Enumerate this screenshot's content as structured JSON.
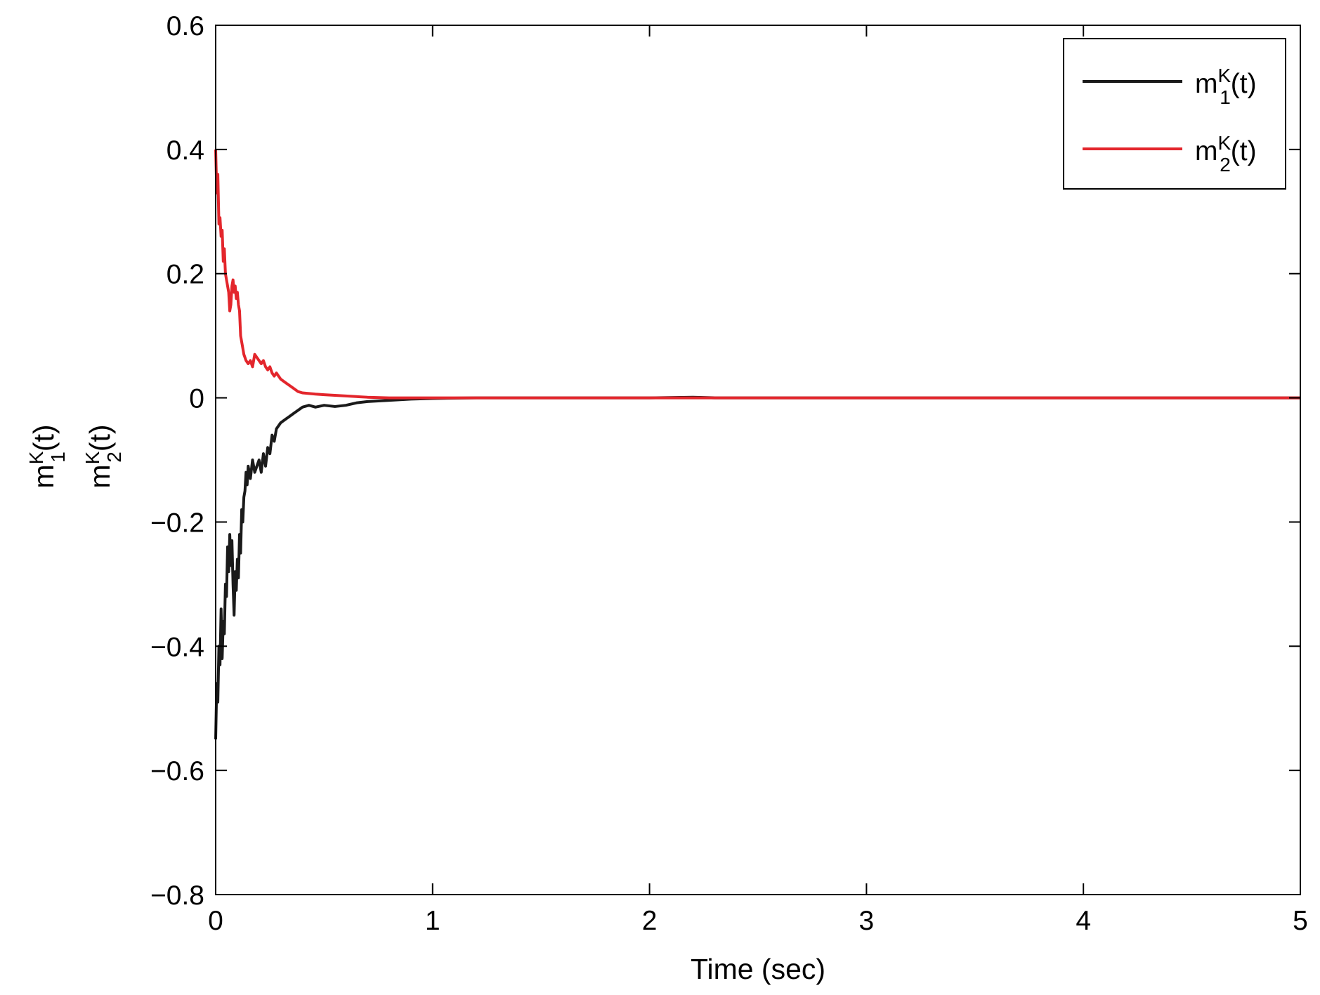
{
  "chart_data": {
    "type": "line",
    "title": "",
    "xlabel": "Time (sec)",
    "ylabel_lines": [
      {
        "base": "m",
        "sup": "K",
        "sub": "1",
        "tail": "(t)"
      },
      {
        "base": "m",
        "sup": "K",
        "sub": "2",
        "tail": "(t)"
      }
    ],
    "xlim": [
      0,
      5
    ],
    "ylim": [
      -0.8,
      0.6
    ],
    "xticks": [
      0,
      1,
      2,
      3,
      4,
      5
    ],
    "xtick_labels": [
      "0",
      "1",
      "2",
      "3",
      "4",
      "5"
    ],
    "yticks": [
      -0.8,
      -0.6,
      -0.4,
      -0.2,
      0,
      0.2,
      0.4,
      0.6
    ],
    "ytick_labels": [
      "−0.8",
      "−0.6",
      "−0.4",
      "−0.2",
      "0",
      "0.2",
      "0.4",
      "0.6"
    ],
    "grid": false,
    "legend_position": "top-right",
    "series": [
      {
        "name": {
          "base": "m",
          "sup": "K",
          "sub": "1",
          "tail": "(t)"
        },
        "color": "#1a1a1a",
        "x": [
          0.0,
          0.005,
          0.01,
          0.015,
          0.02,
          0.025,
          0.03,
          0.035,
          0.04,
          0.045,
          0.05,
          0.055,
          0.06,
          0.065,
          0.07,
          0.075,
          0.08,
          0.085,
          0.09,
          0.095,
          0.1,
          0.105,
          0.11,
          0.115,
          0.12,
          0.125,
          0.13,
          0.135,
          0.14,
          0.145,
          0.15,
          0.16,
          0.17,
          0.18,
          0.19,
          0.2,
          0.21,
          0.22,
          0.23,
          0.24,
          0.25,
          0.26,
          0.27,
          0.28,
          0.3,
          0.32,
          0.34,
          0.36,
          0.38,
          0.4,
          0.43,
          0.46,
          0.5,
          0.55,
          0.6,
          0.65,
          0.7,
          0.8,
          0.9,
          1.0,
          1.2,
          1.5,
          2.0,
          2.2,
          2.3,
          3.0,
          4.0,
          5.0
        ],
        "y": [
          -0.55,
          -0.46,
          -0.49,
          -0.4,
          -0.43,
          -0.34,
          -0.42,
          -0.36,
          -0.38,
          -0.3,
          -0.32,
          -0.24,
          -0.28,
          -0.22,
          -0.27,
          -0.23,
          -0.3,
          -0.35,
          -0.28,
          -0.31,
          -0.26,
          -0.29,
          -0.22,
          -0.25,
          -0.18,
          -0.2,
          -0.16,
          -0.15,
          -0.12,
          -0.14,
          -0.11,
          -0.13,
          -0.1,
          -0.12,
          -0.11,
          -0.1,
          -0.12,
          -0.09,
          -0.11,
          -0.08,
          -0.09,
          -0.06,
          -0.07,
          -0.05,
          -0.04,
          -0.035,
          -0.03,
          -0.025,
          -0.02,
          -0.015,
          -0.012,
          -0.015,
          -0.012,
          -0.014,
          -0.012,
          -0.008,
          -0.006,
          -0.004,
          -0.002,
          -0.001,
          0.0,
          0.0,
          0.0,
          0.001,
          0.0,
          0.0,
          0.0,
          0.0
        ]
      },
      {
        "name": {
          "base": "m",
          "sup": "K",
          "sub": "2",
          "tail": "(t)"
        },
        "color": "#e3262c",
        "x": [
          0.0,
          0.005,
          0.01,
          0.015,
          0.02,
          0.025,
          0.03,
          0.035,
          0.04,
          0.045,
          0.05,
          0.055,
          0.06,
          0.065,
          0.07,
          0.075,
          0.08,
          0.085,
          0.09,
          0.095,
          0.1,
          0.105,
          0.11,
          0.115,
          0.12,
          0.125,
          0.13,
          0.14,
          0.15,
          0.16,
          0.17,
          0.18,
          0.19,
          0.2,
          0.21,
          0.22,
          0.23,
          0.24,
          0.25,
          0.26,
          0.27,
          0.28,
          0.29,
          0.3,
          0.32,
          0.34,
          0.36,
          0.38,
          0.4,
          0.43,
          0.46,
          0.5,
          0.55,
          0.6,
          0.7,
          0.8,
          0.9,
          1.0,
          1.5,
          2.0,
          3.0,
          4.0,
          5.0
        ],
        "y": [
          0.4,
          0.33,
          0.36,
          0.28,
          0.29,
          0.26,
          0.27,
          0.22,
          0.24,
          0.2,
          0.19,
          0.18,
          0.17,
          0.14,
          0.15,
          0.18,
          0.19,
          0.17,
          0.18,
          0.16,
          0.17,
          0.15,
          0.14,
          0.1,
          0.09,
          0.08,
          0.07,
          0.06,
          0.055,
          0.06,
          0.05,
          0.07,
          0.065,
          0.06,
          0.055,
          0.06,
          0.05,
          0.045,
          0.05,
          0.04,
          0.035,
          0.04,
          0.035,
          0.03,
          0.025,
          0.02,
          0.015,
          0.01,
          0.008,
          0.007,
          0.006,
          0.005,
          0.004,
          0.003,
          0.001,
          0.0,
          0.0,
          0.0,
          0.0,
          0.0,
          0.0,
          0.0,
          0.0
        ]
      }
    ]
  }
}
